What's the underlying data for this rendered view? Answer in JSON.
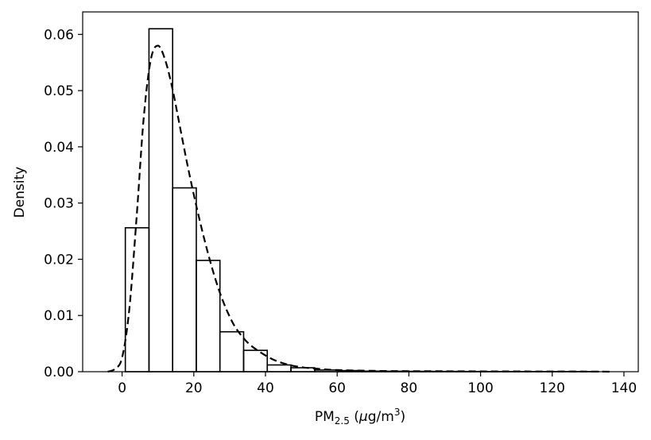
{
  "chart_data": {
    "type": "bar",
    "title": "",
    "xlabel": {
      "main": "PM",
      "sub": "2.5",
      "unit_open": " (",
      "unit_mu": "μ",
      "unit_rest": "g/m",
      "unit_sup": "3",
      "unit_close": ")"
    },
    "ylabel": "Density",
    "xlim": [
      -11,
      144
    ],
    "ylim": [
      0,
      0.064
    ],
    "xticks": [
      0,
      20,
      40,
      60,
      80,
      100,
      120,
      140
    ],
    "yticks": [
      0.0,
      0.01,
      0.02,
      0.03,
      0.04,
      0.05,
      0.06
    ],
    "ytick_labels": [
      "0.00",
      "0.01",
      "0.02",
      "0.03",
      "0.04",
      "0.05",
      "0.06"
    ],
    "grid": false,
    "histogram": {
      "bin_width": 6.6,
      "bin_starts": [
        0.9,
        7.5,
        14.1,
        20.7,
        27.3,
        33.9,
        40.5,
        47.1,
        53.7,
        60.3,
        66.9,
        73.5,
        80.1,
        86.7,
        93.3,
        99.9,
        106.5,
        113.1,
        119.7,
        126.3
      ],
      "densities": [
        0.0256,
        0.061,
        0.0327,
        0.0198,
        0.0071,
        0.0038,
        0.0012,
        0.0007,
        0.0003,
        0.0002,
        0.0001,
        8e-05,
        6e-05,
        5e-05,
        4e-05,
        3e-05,
        3e-05,
        2e-05,
        2e-05,
        2e-05
      ]
    },
    "kde": {
      "style": "dashed",
      "x": [
        -4,
        -2,
        0,
        2,
        4,
        6,
        8,
        10,
        12,
        14,
        16,
        18,
        20,
        22,
        24,
        26,
        28,
        30,
        32,
        35,
        38,
        42,
        46,
        50,
        55,
        60,
        70,
        80,
        90,
        100,
        110,
        120,
        130,
        137
      ],
      "y": [
        0.0,
        0.0005,
        0.0025,
        0.011,
        0.027,
        0.045,
        0.0555,
        0.058,
        0.0555,
        0.0505,
        0.044,
        0.0375,
        0.0315,
        0.026,
        0.021,
        0.0165,
        0.0128,
        0.0098,
        0.0075,
        0.0052,
        0.0037,
        0.0022,
        0.0013,
        0.0008,
        0.0005,
        0.0003,
        0.00015,
        0.0001,
        8e-05,
        6e-05,
        5e-05,
        4e-05,
        3e-05,
        0.0
      ]
    }
  }
}
